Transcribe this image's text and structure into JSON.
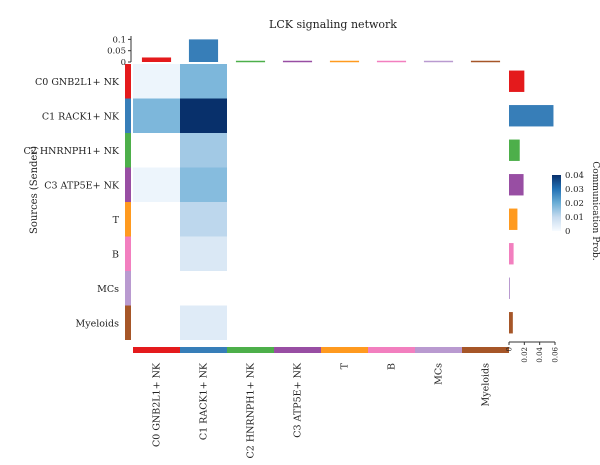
{
  "chart_data": {
    "type": "heatmap",
    "title": "LCK signaling network",
    "ylabel": "Sources (Sender)",
    "rows": [
      "C0 GNB2L1+ NK",
      "C1 RACK1+ NK",
      "C2 HNRNPH1+ NK",
      "C3 ATP5E+ NK",
      "T",
      "B",
      "MCs",
      "Myeloids"
    ],
    "cols": [
      "C0 GNB2L1+ NK",
      "C1 RACK1+ NK",
      "C2 HNRNPH1+ NK",
      "C3 ATP5E+ NK",
      "T",
      "B",
      "MCs",
      "Myeloids"
    ],
    "group_colors": [
      "#e41a1c",
      "#377eb8",
      "#4daf4a",
      "#984ea3",
      "#ff9a1f",
      "#f27fbf",
      "#b99ad0",
      "#a65628"
    ],
    "values": [
      [
        0.002,
        0.018,
        0,
        0,
        0,
        0,
        0,
        0
      ],
      [
        0.018,
        0.04,
        0,
        0,
        0,
        0,
        0,
        0
      ],
      [
        0,
        0.014,
        0,
        0,
        0,
        0,
        0,
        0
      ],
      [
        0.002,
        0.017,
        0,
        0,
        0,
        0,
        0,
        0
      ],
      [
        0,
        0.011,
        0,
        0,
        0,
        0,
        0,
        0
      ],
      [
        0,
        0.006,
        0,
        0,
        0,
        0,
        0,
        0
      ],
      [
        0,
        0,
        0,
        0,
        0,
        0,
        0,
        0
      ],
      [
        0,
        0.005,
        0,
        0,
        0,
        0,
        0,
        0
      ]
    ],
    "col_totals": [
      0.02,
      0.1,
      0,
      0,
      0,
      0,
      0,
      0
    ],
    "top_axis": {
      "ticks": [
        0,
        0.05,
        0.1
      ],
      "tick_labels": [
        "0",
        "0.05",
        "0.1"
      ],
      "max": 0.115
    },
    "row_totals": [
      0.02,
      0.058,
      0.014,
      0.019,
      0.011,
      0.006,
      0.0005,
      0.005
    ],
    "right_axis": {
      "ticks": [
        0,
        0.02,
        0.04,
        0.06
      ],
      "tick_labels": [
        "0",
        "0.02",
        "0.04",
        "0.06"
      ],
      "max": 0.06
    },
    "colorbar": {
      "label": "Communication Prob.",
      "ticks": [
        0,
        0.01,
        0.02,
        0.03,
        0.04
      ],
      "tick_labels": [
        "0",
        "0.01",
        "0.02",
        "0.03",
        "0.04"
      ],
      "range": [
        0,
        0.04
      ],
      "colors": [
        "#f7fbff",
        "#c6dbef",
        "#6baed6",
        "#2171b5",
        "#08306b"
      ]
    },
    "grid": false
  }
}
